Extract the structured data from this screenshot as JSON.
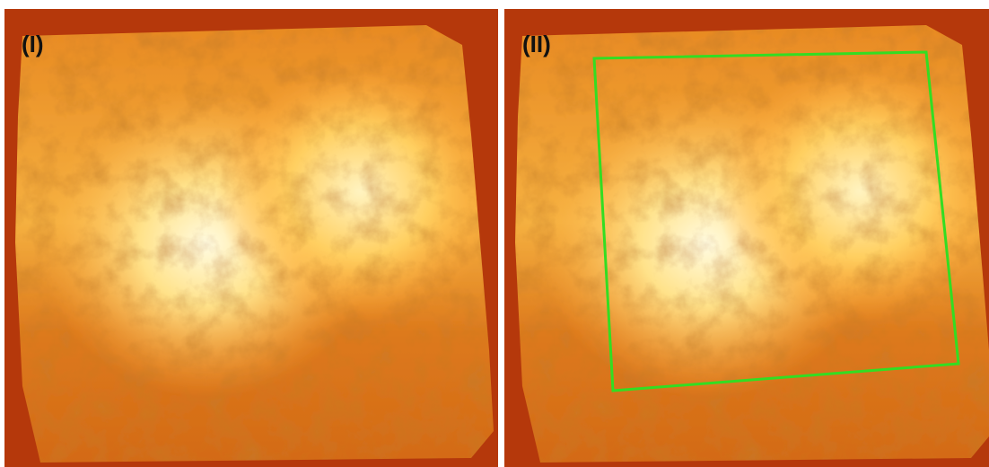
{
  "panels": [
    {
      "label": "(I)"
    },
    {
      "label": "(II)"
    }
  ]
}
